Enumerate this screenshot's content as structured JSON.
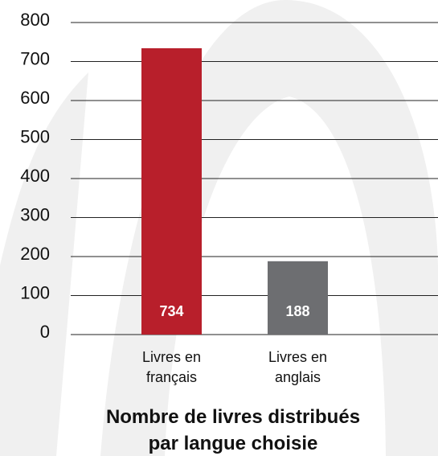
{
  "chart_data": {
    "type": "bar",
    "title": "Nombre de livres distribués\npar langue choisie",
    "categories": [
      "Livres en\nfrançais",
      "Livres en\nanglais"
    ],
    "values": [
      734,
      188
    ],
    "colors": [
      "#b81f2b",
      "#6d6e71"
    ],
    "ylim": [
      0,
      800
    ],
    "yticks": [
      0,
      100,
      200,
      300,
      400,
      500,
      600,
      700,
      800
    ],
    "grid": true
  }
}
